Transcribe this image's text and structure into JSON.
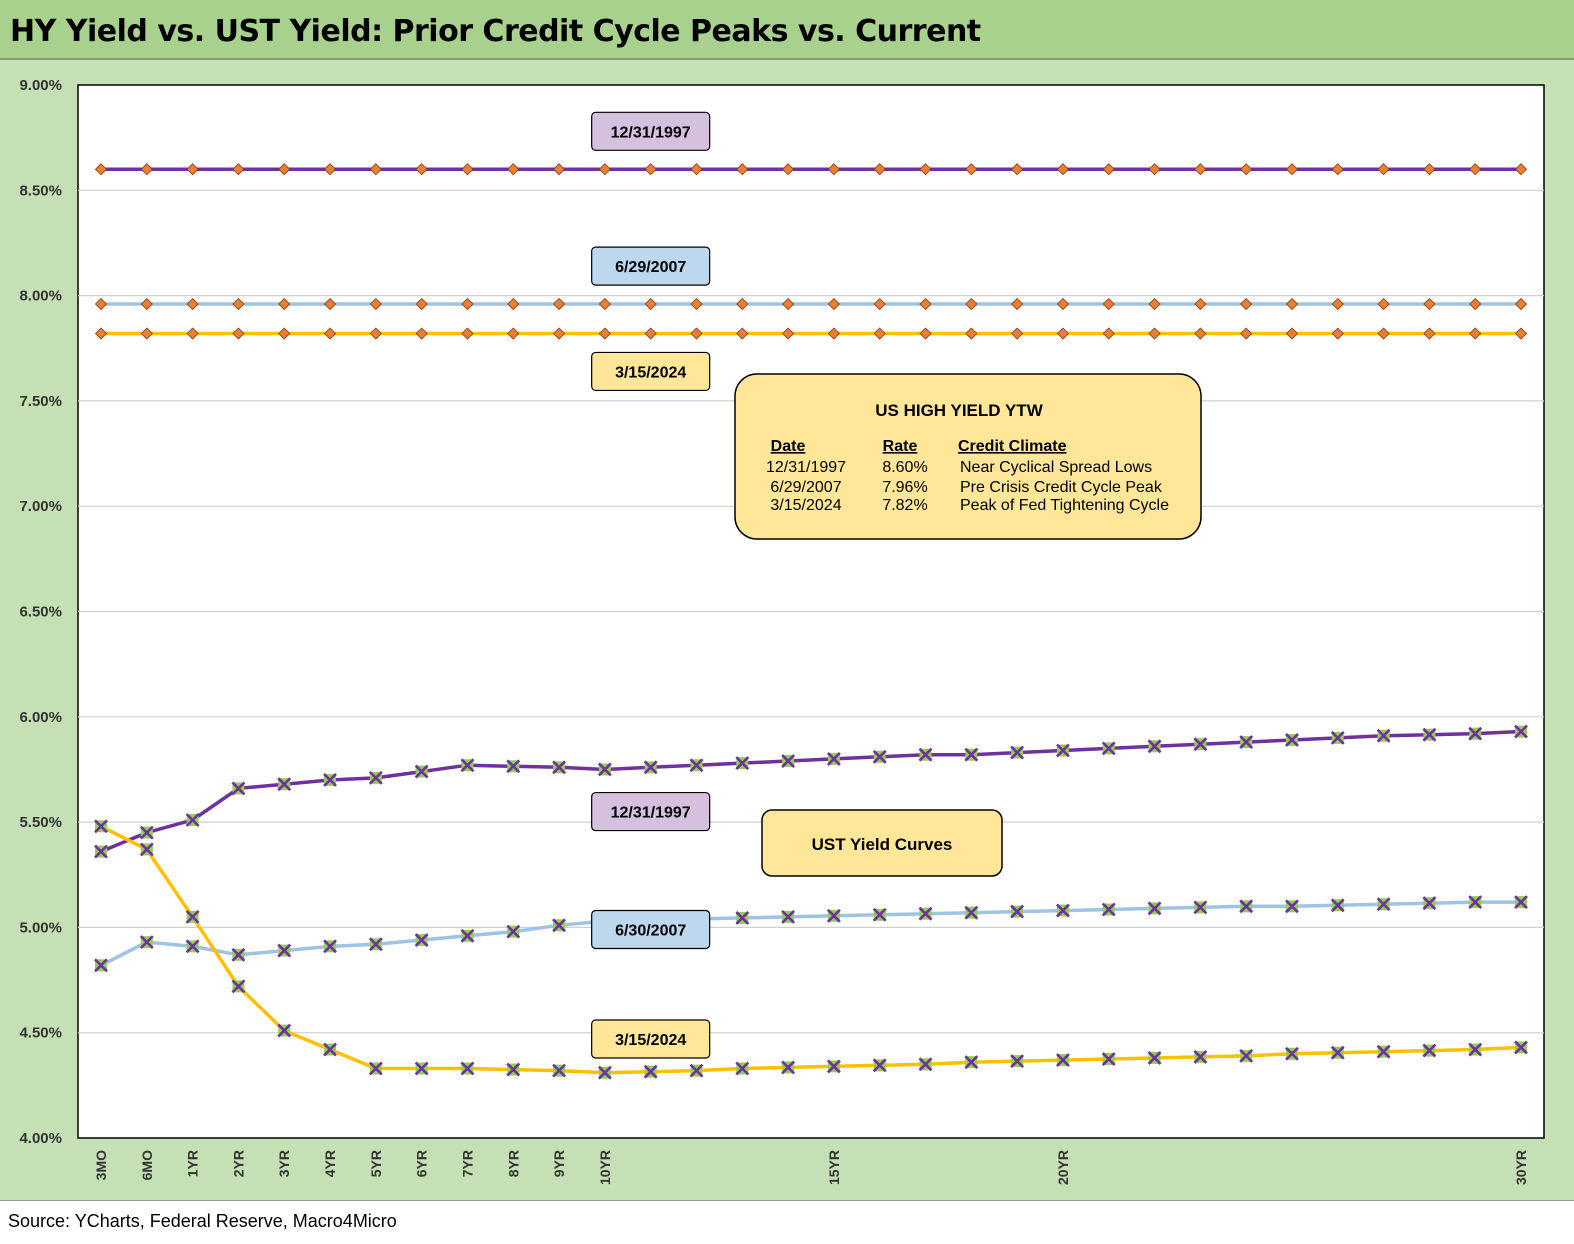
{
  "title": "HY Yield vs. UST Yield: Prior Credit Cycle Peaks vs. Current",
  "source": "Source: YCharts, Federal Reserve, Macro4Micro",
  "colors": {
    "title_bg": "#a9d18e",
    "frame_bg": "#c5e0b4",
    "series_1997": "#7030a0",
    "series_2007": "#9dc3e6",
    "series_2024": "#ffc000",
    "hy_marker": "#ed7d31",
    "ust_marker": "#92d050",
    "label_1997_bg": "#d5c0e0",
    "label_2007_bg": "#bdd7ee",
    "label_2024_bg": "#ffe699"
  },
  "chart_data": {
    "type": "line",
    "ylim": [
      4.0,
      9.0
    ],
    "yticks": [
      "9.00%",
      "8.50%",
      "8.00%",
      "7.50%",
      "7.00%",
      "6.50%",
      "6.00%",
      "5.50%",
      "5.00%",
      "4.50%",
      "4.00%"
    ],
    "ytick_values": [
      9.0,
      8.5,
      8.0,
      7.5,
      7.0,
      6.5,
      6.0,
      5.5,
      5.0,
      4.5,
      4.0
    ],
    "x_count": 32,
    "x_tick_labels": [
      {
        "index": 0,
        "label": "3MO"
      },
      {
        "index": 1,
        "label": "6MO"
      },
      {
        "index": 2,
        "label": "1YR"
      },
      {
        "index": 3,
        "label": "2YR"
      },
      {
        "index": 4,
        "label": "3YR"
      },
      {
        "index": 5,
        "label": "4YR"
      },
      {
        "index": 6,
        "label": "5YR"
      },
      {
        "index": 7,
        "label": "6YR"
      },
      {
        "index": 8,
        "label": "7YR"
      },
      {
        "index": 9,
        "label": "8YR"
      },
      {
        "index": 10,
        "label": "9YR"
      },
      {
        "index": 11,
        "label": "10YR"
      },
      {
        "index": 16,
        "label": "15YR"
      },
      {
        "index": 21,
        "label": "20YR"
      },
      {
        "index": 31,
        "label": "30YR"
      }
    ],
    "grid": true,
    "hy_series": [
      {
        "name": "12/31/1997",
        "color": "#7030a0",
        "value": 8.6,
        "label_bg": "#d5c0e0",
        "label_index": 12,
        "label_value": 8.78
      },
      {
        "name": "6/29/2007",
        "color": "#9dc3e6",
        "value": 7.96,
        "label_bg": "#bdd7ee",
        "label_index": 12,
        "label_value": 8.14
      },
      {
        "name": "3/15/2024",
        "color": "#ffc000",
        "value": 7.82,
        "label_bg": "#ffe699",
        "label_index": 12,
        "label_value": 7.64
      }
    ],
    "ust_series": [
      {
        "name": "12/31/1997",
        "color": "#7030a0",
        "label_bg": "#d5c0e0",
        "label_index": 12,
        "label_value": 5.55,
        "values": [
          5.36,
          5.45,
          5.51,
          5.66,
          5.68,
          5.7,
          5.71,
          5.74,
          5.77,
          5.765,
          5.76,
          5.75,
          5.76,
          5.77,
          5.78,
          5.79,
          5.8,
          5.81,
          5.82,
          5.82,
          5.83,
          5.84,
          5.85,
          5.86,
          5.87,
          5.88,
          5.89,
          5.9,
          5.91,
          5.915,
          5.92,
          5.93
        ]
      },
      {
        "name": "6/30/2007",
        "color": "#9dc3e6",
        "label_bg": "#bdd7ee",
        "label_index": 12,
        "label_value": 4.99,
        "values": [
          4.82,
          4.93,
          4.91,
          4.87,
          4.89,
          4.91,
          4.92,
          4.94,
          4.96,
          4.98,
          5.01,
          5.03,
          5.035,
          5.04,
          5.045,
          5.05,
          5.055,
          5.06,
          5.065,
          5.07,
          5.075,
          5.08,
          5.085,
          5.09,
          5.095,
          5.1,
          5.1,
          5.105,
          5.11,
          5.115,
          5.12,
          5.12
        ]
      },
      {
        "name": "3/15/2024",
        "color": "#ffc000",
        "label_bg": "#ffe699",
        "label_index": 12,
        "label_value": 4.47,
        "values": [
          5.48,
          5.37,
          5.05,
          4.72,
          4.51,
          4.42,
          4.33,
          4.33,
          4.33,
          4.325,
          4.32,
          4.31,
          4.315,
          4.32,
          4.33,
          4.335,
          4.34,
          4.345,
          4.35,
          4.36,
          4.365,
          4.37,
          4.375,
          4.38,
          4.385,
          4.39,
          4.4,
          4.405,
          4.41,
          4.415,
          4.42,
          4.43
        ]
      }
    ],
    "annotation_box": {
      "title": "US HIGH YIELD YTW",
      "headers": [
        "Date",
        "Rate",
        "Credit Climate"
      ],
      "rows": [
        [
          "12/31/1997",
          "8.60%",
          "Near Cyclical Spread Lows"
        ],
        [
          "6/29/2007",
          "7.96%",
          "Pre Crisis Credit Cycle Peak"
        ],
        [
          "3/15/2024",
          "7.82%",
          "Peak of Fed Tightening Cycle"
        ]
      ]
    },
    "ust_box_label": "UST Yield Curves"
  }
}
